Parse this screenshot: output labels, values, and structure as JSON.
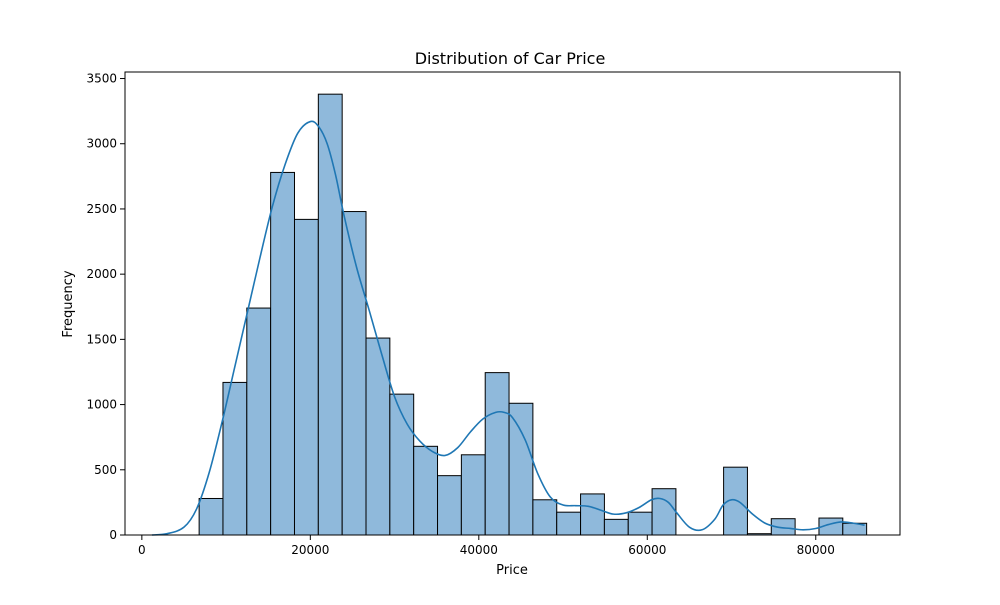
{
  "chart_data": {
    "type": "bar",
    "title": "Distribution of Car Price",
    "xlabel": "Price",
    "ylabel": "Frequency",
    "xlim": [
      -2000,
      90000
    ],
    "ylim": [
      0,
      3550
    ],
    "x_ticks": [
      0,
      20000,
      40000,
      60000,
      80000
    ],
    "x_tick_labels": [
      "0",
      "20000",
      "40000",
      "60000",
      "80000"
    ],
    "y_ticks": [
      0,
      500,
      1000,
      1500,
      2000,
      2500,
      3000,
      3500
    ],
    "y_tick_labels": [
      "0",
      "500",
      "1000",
      "1500",
      "2000",
      "2500",
      "3000",
      "3500"
    ],
    "grid": false,
    "bins": {
      "edges": [
        6800,
        9630,
        12460,
        15290,
        18120,
        20950,
        23780,
        26610,
        29440,
        32270,
        35100,
        37930,
        40760,
        43590,
        46420,
        49250,
        52080,
        54910,
        57740,
        60570,
        63400,
        66230,
        69060,
        71890,
        74720,
        77550,
        80380,
        83210,
        86040
      ],
      "counts": [
        280,
        1170,
        1740,
        2780,
        2420,
        3380,
        2480,
        1510,
        1080,
        680,
        455,
        615,
        1245,
        1010,
        270,
        175,
        315,
        120,
        175,
        355,
        0,
        0,
        520,
        10,
        125,
        0,
        130,
        90
      ]
    },
    "kde": {
      "x": [
        1200,
        3000,
        5000,
        6500,
        8000,
        9500,
        11000,
        12500,
        14000,
        15500,
        17000,
        18500,
        20000,
        21000,
        22000,
        23000,
        24000,
        25500,
        27000,
        28500,
        30000,
        31500,
        33000,
        34500,
        36000,
        37500,
        39000,
        40500,
        42000,
        43000,
        44000,
        45500,
        47000,
        48500,
        50000,
        51500,
        53000,
        54500,
        56000,
        57500,
        59000,
        60500,
        61500,
        62500,
        63500,
        65000,
        66500,
        68000,
        69000,
        70000,
        71000,
        72500,
        74000,
        75500,
        77000,
        78500,
        80000,
        81500,
        83000,
        84500,
        85800
      ],
      "y": [
        0,
        10,
        60,
        200,
        480,
        860,
        1280,
        1700,
        2120,
        2520,
        2840,
        3080,
        3170,
        3130,
        3000,
        2760,
        2450,
        2050,
        1720,
        1380,
        1060,
        850,
        720,
        640,
        610,
        670,
        790,
        890,
        940,
        940,
        900,
        730,
        470,
        290,
        230,
        225,
        220,
        190,
        160,
        170,
        210,
        270,
        280,
        250,
        170,
        60,
        40,
        120,
        230,
        270,
        250,
        160,
        90,
        60,
        50,
        40,
        50,
        80,
        100,
        90,
        75
      ]
    },
    "colors": {
      "bar_fill": "#8fb9db",
      "bar_edge": "#000000",
      "kde_line": "#1f77b4",
      "axis": "#000000"
    }
  }
}
